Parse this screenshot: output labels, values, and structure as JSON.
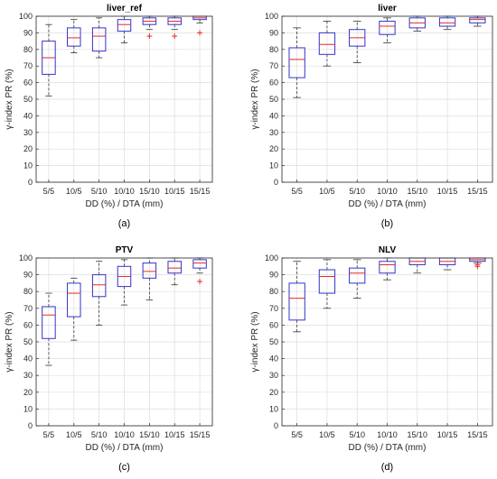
{
  "chart_data": [
    {
      "type": "box",
      "panel_label": "(a)",
      "title": "liver_ref",
      "xlabel": "DD (%) / DTA (mm)",
      "ylabel": "γ-index PR (%)",
      "ylim": [
        0,
        100
      ],
      "yticks": [
        0,
        10,
        20,
        30,
        40,
        50,
        60,
        70,
        80,
        90,
        100
      ],
      "grid": true,
      "categories": [
        "5/5",
        "10/5",
        "5/10",
        "10/10",
        "15/10",
        "10/15",
        "15/15"
      ],
      "boxes": [
        {
          "min": 52,
          "q1": 65,
          "median": 75,
          "q3": 85,
          "max": 95,
          "outliers": []
        },
        {
          "min": 78,
          "q1": 82,
          "median": 87,
          "q3": 93,
          "max": 98,
          "outliers": []
        },
        {
          "min": 75,
          "q1": 79,
          "median": 88,
          "q3": 93,
          "max": 99,
          "outliers": []
        },
        {
          "min": 84,
          "q1": 91,
          "median": 95,
          "q3": 98,
          "max": 100,
          "outliers": []
        },
        {
          "min": 92,
          "q1": 95,
          "median": 97,
          "q3": 99,
          "max": 100,
          "outliers": [
            88
          ]
        },
        {
          "min": 92,
          "q1": 95,
          "median": 97,
          "q3": 99,
          "max": 100,
          "outliers": [
            88
          ]
        },
        {
          "min": 96,
          "q1": 98,
          "median": 99,
          "q3": 100,
          "max": 100,
          "outliers": [
            90
          ]
        }
      ]
    },
    {
      "type": "box",
      "panel_label": "(b)",
      "title": "liver",
      "xlabel": "DD (%) / DTA (mm)",
      "ylabel": "γ-index PR (%)",
      "ylim": [
        0,
        100
      ],
      "yticks": [
        0,
        10,
        20,
        30,
        40,
        50,
        60,
        70,
        80,
        90,
        100
      ],
      "grid": true,
      "categories": [
        "5/5",
        "10/5",
        "5/10",
        "10/10",
        "15/10",
        "10/15",
        "15/15"
      ],
      "boxes": [
        {
          "min": 51,
          "q1": 63,
          "median": 74,
          "q3": 81,
          "max": 93,
          "outliers": []
        },
        {
          "min": 70,
          "q1": 77,
          "median": 83,
          "q3": 90,
          "max": 97,
          "outliers": []
        },
        {
          "min": 72,
          "q1": 82,
          "median": 87,
          "q3": 92,
          "max": 97,
          "outliers": []
        },
        {
          "min": 84,
          "q1": 89,
          "median": 94,
          "q3": 97,
          "max": 99,
          "outliers": []
        },
        {
          "min": 91,
          "q1": 93,
          "median": 96,
          "q3": 99,
          "max": 100,
          "outliers": []
        },
        {
          "min": 92,
          "q1": 94,
          "median": 96,
          "q3": 99,
          "max": 100,
          "outliers": []
        },
        {
          "min": 94,
          "q1": 96,
          "median": 98,
          "q3": 99,
          "max": 100,
          "outliers": []
        }
      ]
    },
    {
      "type": "box",
      "panel_label": "(c)",
      "title": "PTV",
      "xlabel": "DD (%) / DTA (mm)",
      "ylabel": "γ-index PR (%)",
      "ylim": [
        0,
        100
      ],
      "yticks": [
        0,
        10,
        20,
        30,
        40,
        50,
        60,
        70,
        80,
        90,
        100
      ],
      "grid": true,
      "categories": [
        "5/5",
        "10/5",
        "5/10",
        "10/10",
        "15/10",
        "10/15",
        "15/15"
      ],
      "boxes": [
        {
          "min": 36,
          "q1": 52,
          "median": 66,
          "q3": 71,
          "max": 79,
          "outliers": []
        },
        {
          "min": 51,
          "q1": 65,
          "median": 79,
          "q3": 85,
          "max": 88,
          "outliers": []
        },
        {
          "min": 60,
          "q1": 77,
          "median": 84,
          "q3": 90,
          "max": 98,
          "outliers": []
        },
        {
          "min": 72,
          "q1": 83,
          "median": 89,
          "q3": 95,
          "max": 99,
          "outliers": []
        },
        {
          "min": 75,
          "q1": 88,
          "median": 92,
          "q3": 97,
          "max": 100,
          "outliers": []
        },
        {
          "min": 84,
          "q1": 91,
          "median": 94,
          "q3": 98,
          "max": 100,
          "outliers": []
        },
        {
          "min": 91,
          "q1": 94,
          "median": 97,
          "q3": 99,
          "max": 100,
          "outliers": [
            86
          ]
        }
      ]
    },
    {
      "type": "box",
      "panel_label": "(d)",
      "title": "NLV",
      "xlabel": "DD (%) / DTA (mm)",
      "ylabel": "γ-index PR (%)",
      "ylim": [
        0,
        100
      ],
      "yticks": [
        0,
        10,
        20,
        30,
        40,
        50,
        60,
        70,
        80,
        90,
        100
      ],
      "grid": true,
      "categories": [
        "5/5",
        "10/5",
        "5/10",
        "10/10",
        "15/10",
        "10/15",
        "15/15"
      ],
      "boxes": [
        {
          "min": 56,
          "q1": 63,
          "median": 76,
          "q3": 85,
          "max": 98,
          "outliers": []
        },
        {
          "min": 70,
          "q1": 79,
          "median": 89,
          "q3": 93,
          "max": 99,
          "outliers": []
        },
        {
          "min": 76,
          "q1": 85,
          "median": 91,
          "q3": 94,
          "max": 99,
          "outliers": []
        },
        {
          "min": 87,
          "q1": 91,
          "median": 96,
          "q3": 98,
          "max": 100,
          "outliers": []
        },
        {
          "min": 91,
          "q1": 96,
          "median": 98,
          "q3": 100,
          "max": 100,
          "outliers": []
        },
        {
          "min": 93,
          "q1": 96,
          "median": 98,
          "q3": 100,
          "max": 100,
          "outliers": []
        },
        {
          "min": 97,
          "q1": 98,
          "median": 99,
          "q3": 100,
          "max": 100,
          "outliers": [
            95,
            96
          ]
        }
      ]
    }
  ],
  "colors": {
    "box": "#3333cc",
    "median": "#e8282a",
    "whisker": "#333333",
    "outlier": "#e8282a",
    "grid": "#dddddd",
    "axis": "#262626"
  }
}
